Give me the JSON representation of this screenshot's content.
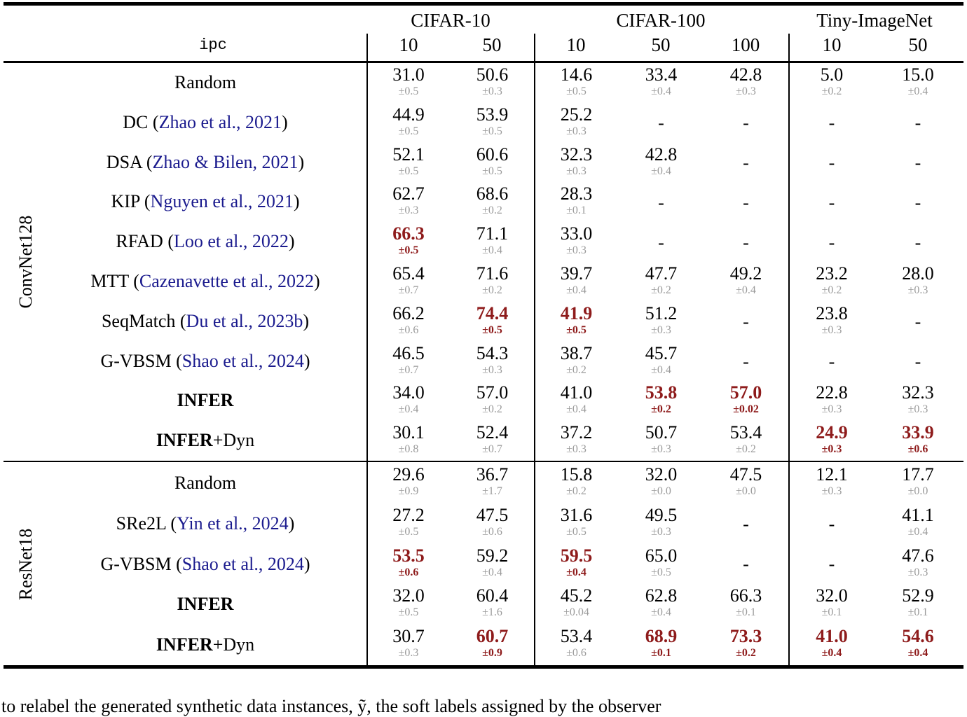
{
  "colors": {
    "highlight_red": "#8e1b1b",
    "citation_blue": "#1b1b8e",
    "error_gray": "#9a9a9a",
    "text_black": "#000000"
  },
  "table": {
    "ipc_label": "ipc",
    "groups": [
      {
        "label": "CIFAR-10",
        "cols": [
          "10",
          "50"
        ]
      },
      {
        "label": "CIFAR-100",
        "cols": [
          "10",
          "50",
          "100"
        ]
      },
      {
        "label": "Tiny-ImageNet",
        "cols": [
          "10",
          "50"
        ]
      }
    ],
    "sections": [
      {
        "model": "ConvNet128",
        "rows": [
          {
            "name": "Random",
            "bold": false,
            "suffix": "",
            "cite": "",
            "cells": [
              {
                "v": "31.0",
                "e": "±0.5",
                "hl": false
              },
              {
                "v": "50.6",
                "e": "±0.3",
                "hl": false
              },
              {
                "v": "14.6",
                "e": "±0.5",
                "hl": false
              },
              {
                "v": "33.4",
                "e": "±0.4",
                "hl": false
              },
              {
                "v": "42.8",
                "e": "±0.3",
                "hl": false
              },
              {
                "v": "5.0",
                "e": "±0.2",
                "hl": false
              },
              {
                "v": "15.0",
                "e": "±0.4",
                "hl": false
              }
            ]
          },
          {
            "name": "DC",
            "bold": false,
            "suffix": "",
            "cite": "Zhao et al., 2021",
            "cells": [
              {
                "v": "44.9",
                "e": "±0.5",
                "hl": false
              },
              {
                "v": "53.9",
                "e": "±0.5",
                "hl": false
              },
              {
                "v": "25.2",
                "e": "±0.3",
                "hl": false
              },
              {
                "v": "-",
                "e": "",
                "hl": false
              },
              {
                "v": "-",
                "e": "",
                "hl": false
              },
              {
                "v": "-",
                "e": "",
                "hl": false
              },
              {
                "v": "-",
                "e": "",
                "hl": false
              }
            ]
          },
          {
            "name": "DSA",
            "bold": false,
            "suffix": "",
            "cite": "Zhao & Bilen, 2021",
            "cells": [
              {
                "v": "52.1",
                "e": "±0.5",
                "hl": false
              },
              {
                "v": "60.6",
                "e": "±0.5",
                "hl": false
              },
              {
                "v": "32.3",
                "e": "±0.3",
                "hl": false
              },
              {
                "v": "42.8",
                "e": "±0.4",
                "hl": false
              },
              {
                "v": "-",
                "e": "",
                "hl": false
              },
              {
                "v": "-",
                "e": "",
                "hl": false
              },
              {
                "v": "-",
                "e": "",
                "hl": false
              }
            ]
          },
          {
            "name": "KIP",
            "bold": false,
            "suffix": "",
            "cite": "Nguyen et al., 2021",
            "cells": [
              {
                "v": "62.7",
                "e": "±0.3",
                "hl": false
              },
              {
                "v": "68.6",
                "e": "±0.2",
                "hl": false
              },
              {
                "v": "28.3",
                "e": "±0.1",
                "hl": false
              },
              {
                "v": "-",
                "e": "",
                "hl": false
              },
              {
                "v": "-",
                "e": "",
                "hl": false
              },
              {
                "v": "-",
                "e": "",
                "hl": false
              },
              {
                "v": "-",
                "e": "",
                "hl": false
              }
            ]
          },
          {
            "name": "RFAD",
            "bold": false,
            "suffix": "",
            "cite": "Loo et al., 2022",
            "cells": [
              {
                "v": "66.3",
                "e": "±0.5",
                "hl": true
              },
              {
                "v": "71.1",
                "e": "±0.4",
                "hl": false
              },
              {
                "v": "33.0",
                "e": "±0.3",
                "hl": false
              },
              {
                "v": "-",
                "e": "",
                "hl": false
              },
              {
                "v": "-",
                "e": "",
                "hl": false
              },
              {
                "v": "-",
                "e": "",
                "hl": false
              },
              {
                "v": "-",
                "e": "",
                "hl": false
              }
            ]
          },
          {
            "name": "MTT",
            "bold": false,
            "suffix": "",
            "cite": "Cazenavette et al., 2022",
            "cells": [
              {
                "v": "65.4",
                "e": "±0.7",
                "hl": false
              },
              {
                "v": "71.6",
                "e": "±0.2",
                "hl": false
              },
              {
                "v": "39.7",
                "e": "±0.4",
                "hl": false
              },
              {
                "v": "47.7",
                "e": "±0.2",
                "hl": false
              },
              {
                "v": "49.2",
                "e": "±0.4",
                "hl": false
              },
              {
                "v": "23.2",
                "e": "±0.2",
                "hl": false
              },
              {
                "v": "28.0",
                "e": "±0.3",
                "hl": false
              }
            ]
          },
          {
            "name": "SeqMatch",
            "bold": false,
            "suffix": "",
            "cite": "Du et al., 2023b",
            "cells": [
              {
                "v": "66.2",
                "e": "±0.6",
                "hl": false
              },
              {
                "v": "74.4",
                "e": "±0.5",
                "hl": true
              },
              {
                "v": "41.9",
                "e": "±0.5",
                "hl": true
              },
              {
                "v": "51.2",
                "e": "±0.3",
                "hl": false
              },
              {
                "v": "-",
                "e": "",
                "hl": false
              },
              {
                "v": "23.8",
                "e": "±0.3",
                "hl": false
              },
              {
                "v": "-",
                "e": "",
                "hl": false
              }
            ]
          },
          {
            "name": "G-VBSM",
            "bold": false,
            "suffix": "",
            "cite": "Shao et al., 2024",
            "cells": [
              {
                "v": "46.5",
                "e": "±0.7",
                "hl": false
              },
              {
                "v": "54.3",
                "e": "±0.3",
                "hl": false
              },
              {
                "v": "38.7",
                "e": "±0.2",
                "hl": false
              },
              {
                "v": "45.7",
                "e": "±0.4",
                "hl": false
              },
              {
                "v": "-",
                "e": "",
                "hl": false
              },
              {
                "v": "-",
                "e": "",
                "hl": false
              },
              {
                "v": "-",
                "e": "",
                "hl": false
              }
            ]
          },
          {
            "name": "INFER",
            "bold": true,
            "suffix": "",
            "cite": "",
            "cells": [
              {
                "v": "34.0",
                "e": "±0.4",
                "hl": false
              },
              {
                "v": "57.0",
                "e": "±0.2",
                "hl": false
              },
              {
                "v": "41.0",
                "e": "±0.4",
                "hl": false
              },
              {
                "v": "53.8",
                "e": "±0.2",
                "hl": true
              },
              {
                "v": "57.0",
                "e": "±0.02",
                "hl": true
              },
              {
                "v": "22.8",
                "e": "±0.3",
                "hl": false
              },
              {
                "v": "32.3",
                "e": "±0.3",
                "hl": false
              }
            ]
          },
          {
            "name": "INFER",
            "bold": true,
            "suffix": "+Dyn",
            "cite": "",
            "cells": [
              {
                "v": "30.1",
                "e": "±0.8",
                "hl": false
              },
              {
                "v": "52.4",
                "e": "±0.7",
                "hl": false
              },
              {
                "v": "37.2",
                "e": "±0.3",
                "hl": false
              },
              {
                "v": "50.7",
                "e": "±0.3",
                "hl": false
              },
              {
                "v": "53.4",
                "e": "±0.2",
                "hl": false
              },
              {
                "v": "24.9",
                "e": "±0.3",
                "hl": true
              },
              {
                "v": "33.9",
                "e": "±0.6",
                "hl": true
              }
            ]
          }
        ]
      },
      {
        "model": "ResNet18",
        "rows": [
          {
            "name": "Random",
            "bold": false,
            "suffix": "",
            "cite": "",
            "cells": [
              {
                "v": "29.6",
                "e": "±0.9",
                "hl": false
              },
              {
                "v": "36.7",
                "e": "±1.7",
                "hl": false
              },
              {
                "v": "15.8",
                "e": "±0.2",
                "hl": false
              },
              {
                "v": "32.0",
                "e": "±0.0",
                "hl": false
              },
              {
                "v": "47.5",
                "e": "±0.0",
                "hl": false
              },
              {
                "v": "12.1",
                "e": "±0.3",
                "hl": false
              },
              {
                "v": "17.7",
                "e": "±0.0",
                "hl": false
              }
            ]
          },
          {
            "name": "SRe2L",
            "bold": false,
            "suffix": "",
            "cite": "Yin et al., 2024",
            "cells": [
              {
                "v": "27.2",
                "e": "±0.5",
                "hl": false
              },
              {
                "v": "47.5",
                "e": "±0.6",
                "hl": false
              },
              {
                "v": "31.6",
                "e": "±0.5",
                "hl": false
              },
              {
                "v": "49.5",
                "e": "±0.3",
                "hl": false
              },
              {
                "v": "-",
                "e": "",
                "hl": false
              },
              {
                "v": "-",
                "e": "",
                "hl": false
              },
              {
                "v": "41.1",
                "e": "±0.4",
                "hl": false
              }
            ]
          },
          {
            "name": "G-VBSM",
            "bold": false,
            "suffix": "",
            "cite": "Shao et al., 2024",
            "cells": [
              {
                "v": "53.5",
                "e": "±0.6",
                "hl": true
              },
              {
                "v": "59.2",
                "e": "±0.4",
                "hl": false
              },
              {
                "v": "59.5",
                "e": "±0.4",
                "hl": true
              },
              {
                "v": "65.0",
                "e": "±0.5",
                "hl": false
              },
              {
                "v": "-",
                "e": "",
                "hl": false
              },
              {
                "v": "-",
                "e": "",
                "hl": false
              },
              {
                "v": "47.6",
                "e": "±0.3",
                "hl": false
              }
            ]
          },
          {
            "name": "INFER",
            "bold": true,
            "suffix": "",
            "cite": "",
            "cells": [
              {
                "v": "32.0",
                "e": "±0.5",
                "hl": false
              },
              {
                "v": "60.4",
                "e": "±1.6",
                "hl": false
              },
              {
                "v": "45.2",
                "e": "±0.04",
                "hl": false
              },
              {
                "v": "62.8",
                "e": "±0.4",
                "hl": false
              },
              {
                "v": "66.3",
                "e": "±0.1",
                "hl": false
              },
              {
                "v": "32.0",
                "e": "±0.1",
                "hl": false
              },
              {
                "v": "52.9",
                "e": "±0.1",
                "hl": false
              }
            ]
          },
          {
            "name": "INFER",
            "bold": true,
            "suffix": "+Dyn",
            "cite": "",
            "cells": [
              {
                "v": "30.7",
                "e": "±0.3",
                "hl": false
              },
              {
                "v": "60.7",
                "e": "±0.9",
                "hl": true
              },
              {
                "v": "53.4",
                "e": "±0.6",
                "hl": false
              },
              {
                "v": "68.9",
                "e": "±0.1",
                "hl": true
              },
              {
                "v": "73.3",
                "e": "±0.2",
                "hl": true
              },
              {
                "v": "41.0",
                "e": "±0.4",
                "hl": true
              },
              {
                "v": "54.6",
                "e": "±0.4",
                "hl": true
              }
            ]
          }
        ]
      }
    ]
  },
  "caption_fragment": "to relabel the generated synthetic data instances, ỹ, the soft labels assigned by the observer"
}
